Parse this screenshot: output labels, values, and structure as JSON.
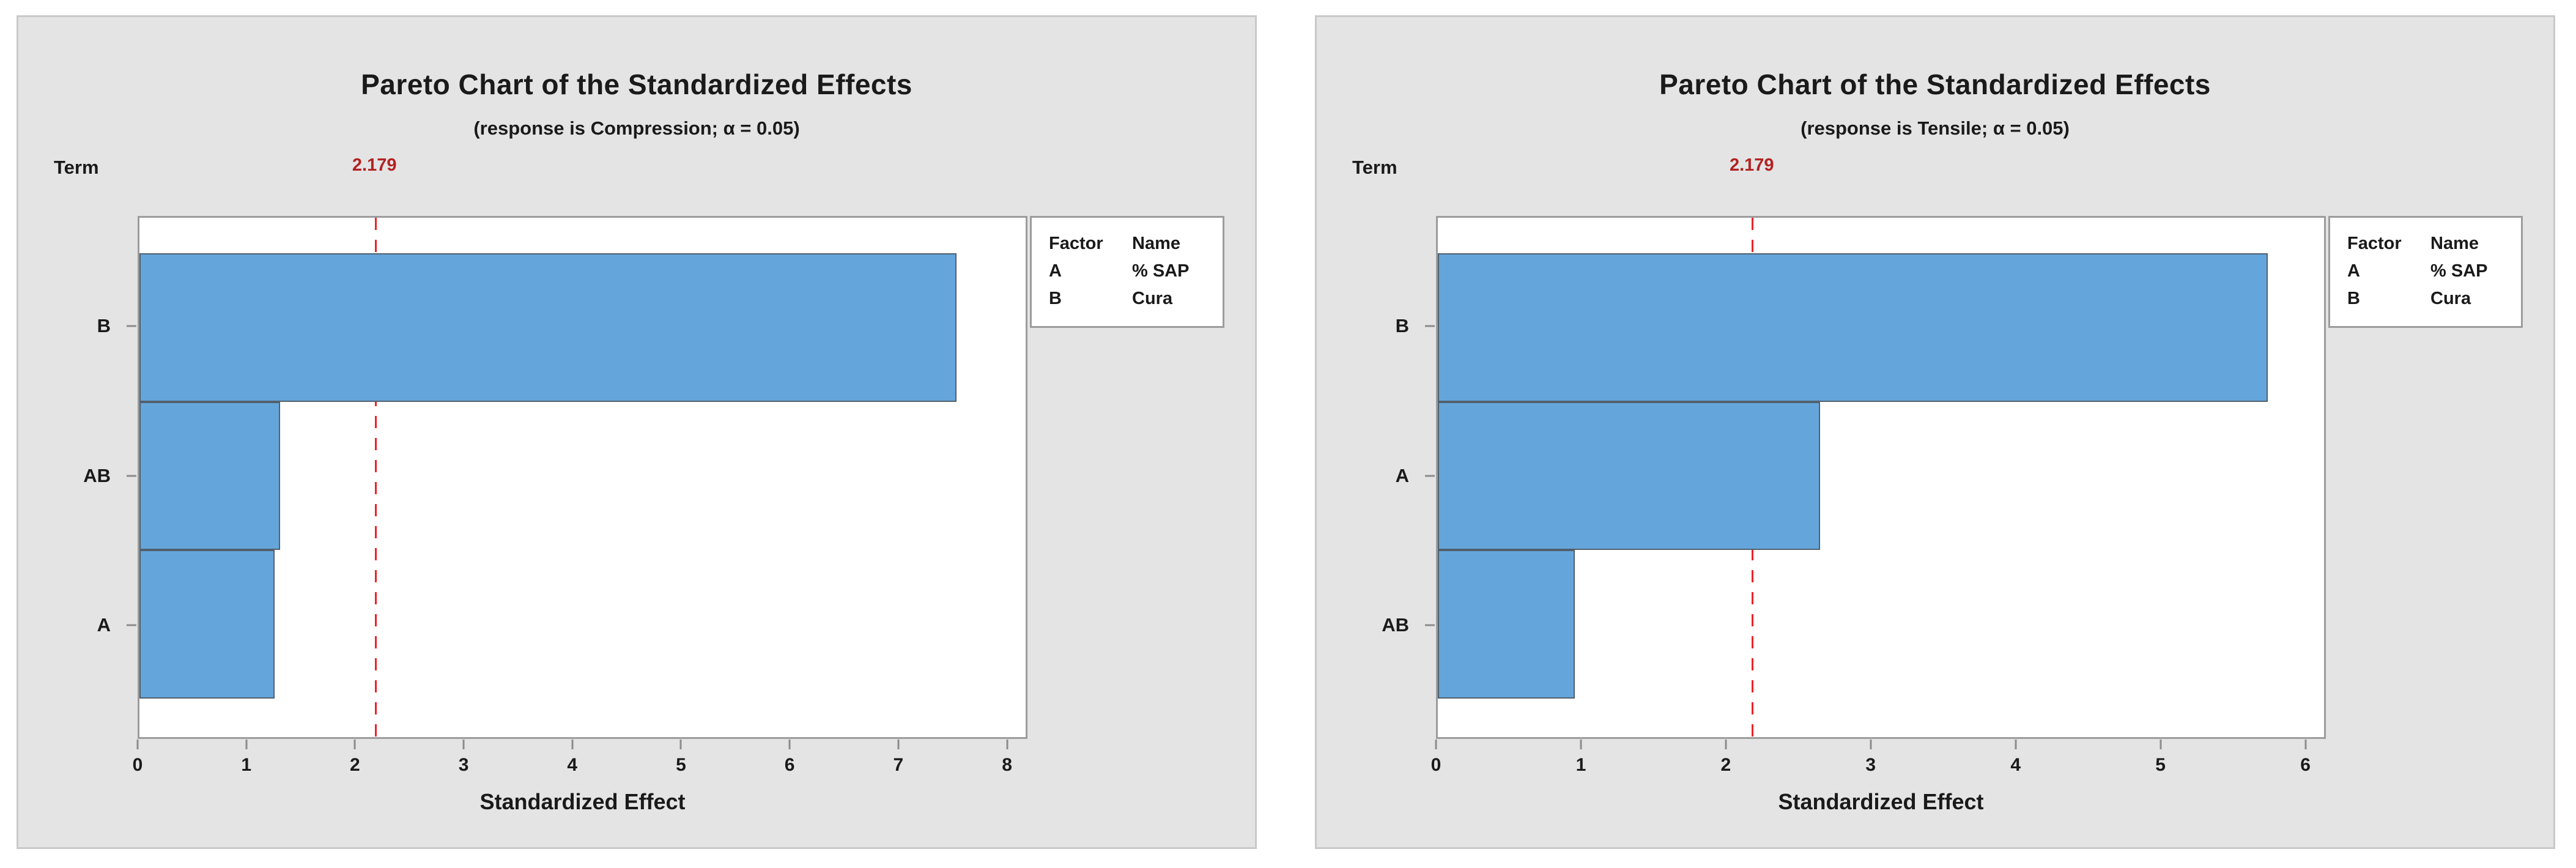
{
  "colors": {
    "panel_background": "#E4E4E4",
    "panel_border": "#C9C9C9",
    "plot_background": "#FFFFFF",
    "plot_border": "#9C9C9C",
    "bar_fill": "#64A6DB",
    "bar_border": "#51606E",
    "tick": "#8C8C8C",
    "text": "#1A1A1A",
    "reference_line": "#EC2227",
    "reference_label": "#B22222"
  },
  "chart_data": [
    {
      "type": "bar",
      "orientation": "horizontal",
      "title": "Pareto Chart of the Standardized Effects",
      "subtitle": "(response is Compression; α = 0.05)",
      "term_label": "Term",
      "xlabel": "Standardized Effect",
      "categories": [
        "B",
        "AB",
        "A"
      ],
      "values": [
        7.55,
        1.3,
        1.25
      ],
      "xlim": [
        0,
        8
      ],
      "xticks": [
        0,
        1,
        2,
        3,
        4,
        5,
        6,
        7,
        8
      ],
      "grid": false,
      "reference_line": {
        "value": 2.179,
        "label": "2.179"
      },
      "legend": {
        "position": "top-right",
        "headers": [
          "Factor",
          "Name"
        ],
        "rows": [
          [
            "A",
            "% SAP"
          ],
          [
            "B",
            "Cura"
          ]
        ]
      }
    },
    {
      "type": "bar",
      "orientation": "horizontal",
      "title": "Pareto Chart of the Standardized Effects",
      "subtitle": "(response is Tensile; α = 0.05)",
      "term_label": "Term",
      "xlabel": "Standardized Effect",
      "categories": [
        "B",
        "A",
        "AB"
      ],
      "values": [
        5.75,
        2.65,
        0.95
      ],
      "xlim": [
        0,
        6
      ],
      "xticks": [
        0,
        1,
        2,
        3,
        4,
        5,
        6
      ],
      "grid": false,
      "reference_line": {
        "value": 2.179,
        "label": "2.179"
      },
      "legend": {
        "position": "top-right",
        "headers": [
          "Factor",
          "Name"
        ],
        "rows": [
          [
            "A",
            "% SAP"
          ],
          [
            "B",
            "Cura"
          ]
        ]
      }
    }
  ]
}
